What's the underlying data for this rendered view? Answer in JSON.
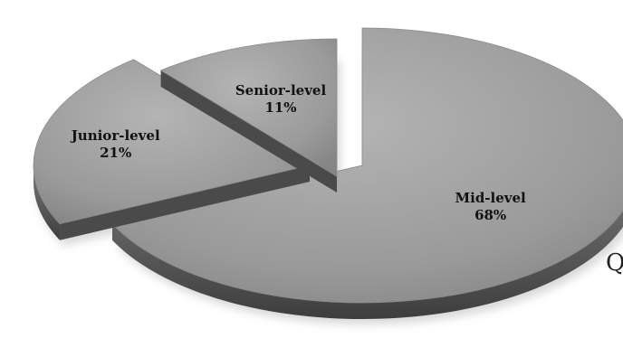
{
  "chart_data": {
    "type": "pie",
    "style": "3d-exploded",
    "title": "",
    "slices": [
      {
        "label": "Mid-level",
        "value": 68,
        "value_label": "68%"
      },
      {
        "label": "Junior-level",
        "value": 21,
        "value_label": "21%"
      },
      {
        "label": "Senior-level",
        "value": 11,
        "value_label": "11%"
      }
    ],
    "legend": "none",
    "colors": {
      "top_face": "#9a9a9a",
      "rim": "#5c5c5c",
      "wall": "#4a4a4a",
      "shadow": "#b8b8b8"
    }
  },
  "edge_text": "Q"
}
